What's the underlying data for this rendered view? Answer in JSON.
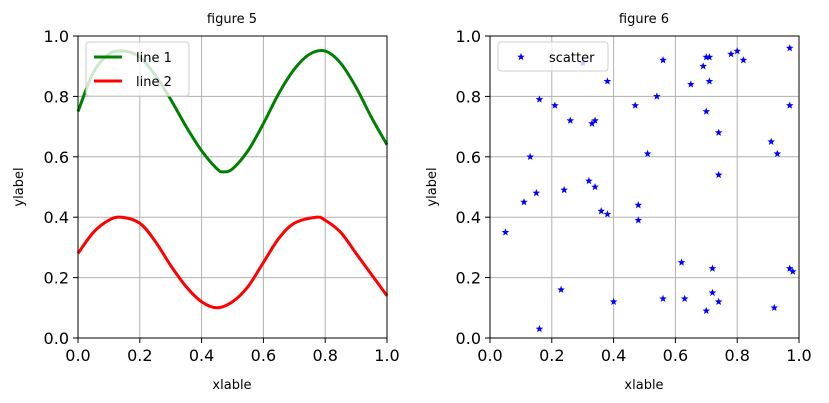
{
  "chart_data": [
    {
      "type": "line",
      "title": "figure 5",
      "xlabel": "xlable",
      "ylabel": "ylabel",
      "xlim": [
        0,
        1
      ],
      "ylim": [
        0,
        1
      ],
      "xticks": [
        "0.0",
        "0.2",
        "0.4",
        "0.6",
        "0.8",
        "1.0"
      ],
      "yticks": [
        "0.0",
        "0.2",
        "0.4",
        "0.6",
        "0.8",
        "1.0"
      ],
      "grid": true,
      "legend_position": "top-left",
      "series": [
        {
          "name": "line 1",
          "color": "#008000",
          "x": [
            0.0,
            0.05,
            0.1,
            0.15,
            0.2,
            0.25,
            0.3,
            0.35,
            0.4,
            0.45,
            0.47,
            0.5,
            0.55,
            0.6,
            0.65,
            0.7,
            0.75,
            0.8,
            0.85,
            0.9,
            0.95,
            1.0
          ],
          "y": [
            0.75,
            0.88,
            0.94,
            0.95,
            0.93,
            0.87,
            0.79,
            0.7,
            0.62,
            0.56,
            0.55,
            0.56,
            0.62,
            0.71,
            0.81,
            0.89,
            0.94,
            0.95,
            0.91,
            0.83,
            0.73,
            0.64
          ]
        },
        {
          "name": "line 2",
          "color": "#ff0000",
          "x": [
            0.0,
            0.05,
            0.1,
            0.14,
            0.2,
            0.25,
            0.3,
            0.35,
            0.4,
            0.45,
            0.5,
            0.55,
            0.6,
            0.65,
            0.7,
            0.77,
            0.8,
            0.85,
            0.9,
            0.95,
            1.0
          ],
          "y": [
            0.28,
            0.35,
            0.39,
            0.4,
            0.38,
            0.32,
            0.24,
            0.17,
            0.12,
            0.1,
            0.12,
            0.17,
            0.25,
            0.33,
            0.38,
            0.4,
            0.39,
            0.35,
            0.28,
            0.21,
            0.14
          ]
        }
      ]
    },
    {
      "type": "scatter",
      "title": "figure 6",
      "xlabel": "xlable",
      "ylabel": "ylabel",
      "xlim": [
        0,
        1
      ],
      "ylim": [
        0,
        1
      ],
      "xticks": [
        "0.0",
        "0.2",
        "0.4",
        "0.6",
        "0.8",
        "1.0"
      ],
      "yticks": [
        "0.0",
        "0.2",
        "0.4",
        "0.6",
        "0.8",
        "1.0"
      ],
      "grid": true,
      "legend_position": "top-left",
      "series": [
        {
          "name": "scatter",
          "color": "#0000ff",
          "marker": "star",
          "points": [
            [
              0.05,
              0.35
            ],
            [
              0.11,
              0.45
            ],
            [
              0.13,
              0.6
            ],
            [
              0.15,
              0.48
            ],
            [
              0.16,
              0.79
            ],
            [
              0.16,
              0.03
            ],
            [
              0.21,
              0.77
            ],
            [
              0.23,
              0.16
            ],
            [
              0.24,
              0.49
            ],
            [
              0.26,
              0.72
            ],
            [
              0.3,
              0.91
            ],
            [
              0.32,
              0.52
            ],
            [
              0.33,
              0.71
            ],
            [
              0.34,
              0.72
            ],
            [
              0.34,
              0.5
            ],
            [
              0.36,
              0.42
            ],
            [
              0.38,
              0.41
            ],
            [
              0.38,
              0.85
            ],
            [
              0.4,
              0.12
            ],
            [
              0.47,
              0.77
            ],
            [
              0.48,
              0.44
            ],
            [
              0.48,
              0.39
            ],
            [
              0.51,
              0.61
            ],
            [
              0.54,
              0.8
            ],
            [
              0.56,
              0.92
            ],
            [
              0.56,
              0.13
            ],
            [
              0.62,
              0.25
            ],
            [
              0.63,
              0.13
            ],
            [
              0.65,
              0.84
            ],
            [
              0.69,
              0.9
            ],
            [
              0.7,
              0.93
            ],
            [
              0.7,
              0.75
            ],
            [
              0.7,
              0.09
            ],
            [
              0.71,
              0.85
            ],
            [
              0.71,
              0.93
            ],
            [
              0.72,
              0.23
            ],
            [
              0.72,
              0.15
            ],
            [
              0.74,
              0.68
            ],
            [
              0.74,
              0.54
            ],
            [
              0.74,
              0.12
            ],
            [
              0.78,
              0.94
            ],
            [
              0.8,
              0.95
            ],
            [
              0.82,
              0.92
            ],
            [
              0.91,
              0.65
            ],
            [
              0.92,
              0.1
            ],
            [
              0.93,
              0.61
            ],
            [
              0.97,
              0.96
            ],
            [
              0.97,
              0.77
            ],
            [
              0.97,
              0.23
            ],
            [
              0.98,
              0.22
            ]
          ]
        }
      ]
    }
  ]
}
